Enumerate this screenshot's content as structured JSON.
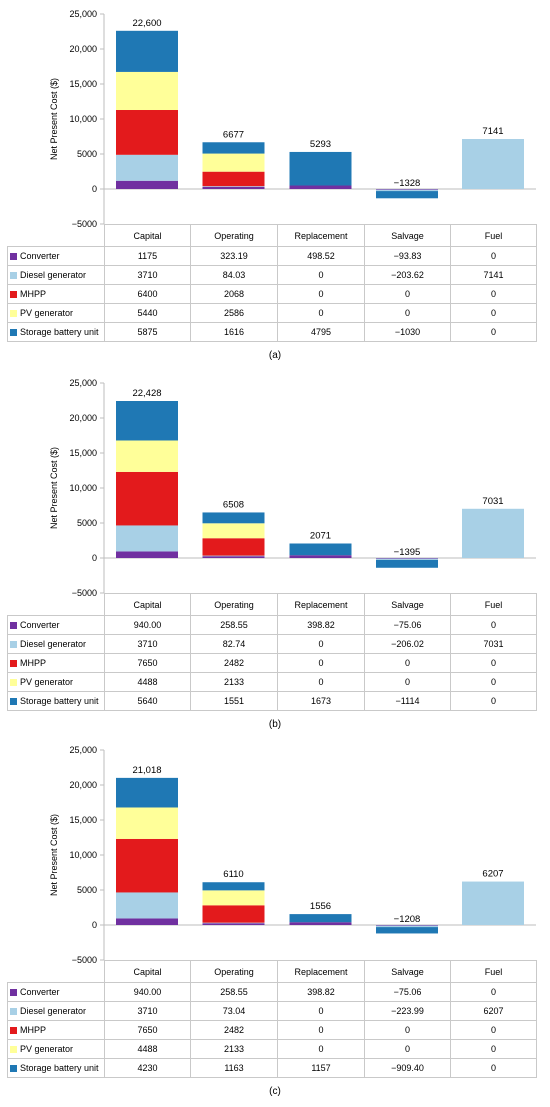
{
  "ylabel": "Net Present Cost ($)",
  "yticks": [
    "25,000",
    "20,000",
    "15,000",
    "10,000",
    "5000",
    "0",
    "−5000"
  ],
  "components": [
    {
      "name": "Converter",
      "color": "#7030a0"
    },
    {
      "name": "Diesel generator",
      "color": "#a8d0e6"
    },
    {
      "name": "MHPP",
      "color": "#e31a1c"
    },
    {
      "name": "PV generator",
      "color": "#ffff99"
    },
    {
      "name": "Storage battery unit",
      "color": "#1f78b4"
    }
  ],
  "categories": [
    "Capital",
    "Operating",
    "Replacement",
    "Salvage",
    "Fuel"
  ],
  "panels": [
    {
      "caption": "(a)",
      "totals": [
        "22,600",
        "6677",
        "5293",
        "−1328",
        "7141"
      ],
      "rows": [
        [
          "1175",
          "323.19",
          "498.52",
          "−93.83",
          "0"
        ],
        [
          "3710",
          "84.03",
          "0",
          "−203.62",
          "7141"
        ],
        [
          "6400",
          "2068",
          "0",
          "0",
          "0"
        ],
        [
          "5440",
          "2586",
          "0",
          "0",
          "0"
        ],
        [
          "5875",
          "1616",
          "4795",
          "−1030",
          "0"
        ]
      ]
    },
    {
      "caption": "(b)",
      "totals": [
        "22,428",
        "6508",
        "2071",
        "−1395",
        "7031"
      ],
      "rows": [
        [
          "940.00",
          "258.55",
          "398.82",
          "−75.06",
          "0"
        ],
        [
          "3710",
          "82.74",
          "0",
          "−206.02",
          "7031"
        ],
        [
          "7650",
          "2482",
          "0",
          "0",
          "0"
        ],
        [
          "4488",
          "2133",
          "0",
          "0",
          "0"
        ],
        [
          "5640",
          "1551",
          "1673",
          "−1114",
          "0"
        ]
      ]
    },
    {
      "caption": "(c)",
      "totals": [
        "21,018",
        "6110",
        "1556",
        "−1208",
        "6207"
      ],
      "rows": [
        [
          "940.00",
          "258.55",
          "398.82",
          "−75.06",
          "0"
        ],
        [
          "3710",
          "73.04",
          "0",
          "−223.99",
          "6207"
        ],
        [
          "7650",
          "2482",
          "0",
          "0",
          "0"
        ],
        [
          "4488",
          "2133",
          "0",
          "0",
          "0"
        ],
        [
          "4230",
          "1163",
          "1157",
          "−909.40",
          "0"
        ]
      ]
    }
  ],
  "chart_data": [
    {
      "type": "bar",
      "stacked": true,
      "categories": [
        "Capital",
        "Operating",
        "Replacement",
        "Salvage",
        "Fuel"
      ],
      "ylabel": "Net Present Cost ($)",
      "ylim": [
        -5000,
        25000
      ],
      "series": [
        {
          "name": "Converter",
          "values": [
            1175,
            323.19,
            498.52,
            -93.83,
            0
          ]
        },
        {
          "name": "Diesel generator",
          "values": [
            3710,
            84.03,
            0,
            -203.62,
            7141
          ]
        },
        {
          "name": "MHPP",
          "values": [
            6400,
            2068,
            0,
            0,
            0
          ]
        },
        {
          "name": "PV generator",
          "values": [
            5440,
            2586,
            0,
            0,
            0
          ]
        },
        {
          "name": "Storage battery unit",
          "values": [
            5875,
            1616,
            4795,
            -1030,
            0
          ]
        }
      ]
    },
    {
      "type": "bar",
      "stacked": true,
      "categories": [
        "Capital",
        "Operating",
        "Replacement",
        "Salvage",
        "Fuel"
      ],
      "ylabel": "Net Present Cost ($)",
      "ylim": [
        -5000,
        25000
      ],
      "series": [
        {
          "name": "Converter",
          "values": [
            940,
            258.55,
            398.82,
            -75.06,
            0
          ]
        },
        {
          "name": "Diesel generator",
          "values": [
            3710,
            82.74,
            0,
            -206.02,
            7031
          ]
        },
        {
          "name": "MHPP",
          "values": [
            7650,
            2482,
            0,
            0,
            0
          ]
        },
        {
          "name": "PV generator",
          "values": [
            4488,
            2133,
            0,
            0,
            0
          ]
        },
        {
          "name": "Storage battery unit",
          "values": [
            5640,
            1551,
            1673,
            -1114,
            0
          ]
        }
      ]
    },
    {
      "type": "bar",
      "stacked": true,
      "categories": [
        "Capital",
        "Operating",
        "Replacement",
        "Salvage",
        "Fuel"
      ],
      "ylabel": "Net Present Cost ($)",
      "ylim": [
        -5000,
        25000
      ],
      "series": [
        {
          "name": "Converter",
          "values": [
            940,
            258.55,
            398.82,
            -75.06,
            0
          ]
        },
        {
          "name": "Diesel generator",
          "values": [
            3710,
            73.04,
            0,
            -223.99,
            6207
          ]
        },
        {
          "name": "MHPP",
          "values": [
            7650,
            2482,
            0,
            0,
            0
          ]
        },
        {
          "name": "PV generator",
          "values": [
            4488,
            2133,
            0,
            0,
            0
          ]
        },
        {
          "name": "Storage battery unit",
          "values": [
            4230,
            1163,
            1157,
            -909.4,
            0
          ]
        }
      ]
    }
  ]
}
